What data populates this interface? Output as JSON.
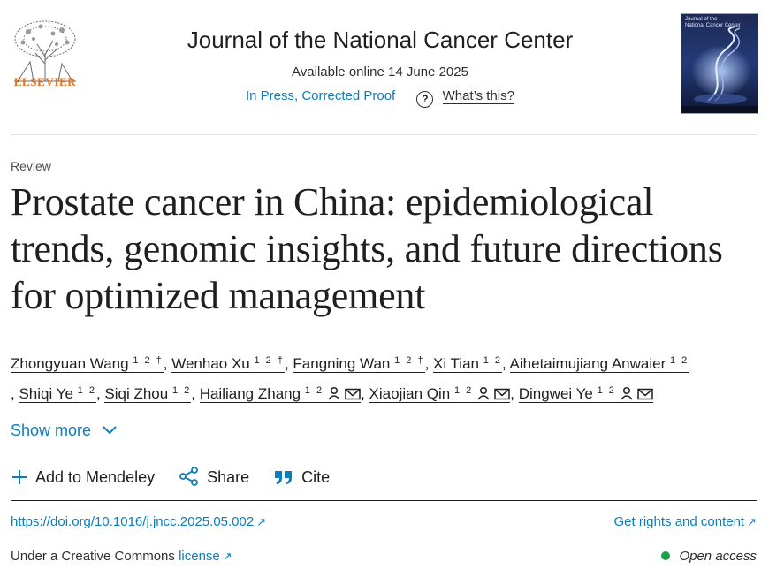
{
  "header": {
    "publisher": "ELSEVIER",
    "journal": "Journal of the National Cancer Center",
    "available": "Available online 14 June 2025",
    "status": "In Press, Corrected Proof",
    "whats_this": "What’s this?",
    "help_icon": "question-circle-icon"
  },
  "cover": {
    "line1": "Journal of the",
    "line2": "National Cancer Center"
  },
  "article": {
    "type": "Review",
    "title": "Prostate cancer in China: epidemiological trends, genomic insights, and future directions for optimized management"
  },
  "authors": [
    {
      "name": "Zhongyuan Wang",
      "sup": "1 2 †"
    },
    {
      "name": "Wenhao Xu",
      "sup": "1 2 †"
    },
    {
      "name": "Fangning Wan",
      "sup": "1 2 †"
    },
    {
      "name": "Xi Tian",
      "sup": "1 2"
    },
    {
      "name": "Aihetaimujiang Anwaier",
      "sup": "1 2"
    },
    {
      "name": "Shiqi Ye",
      "sup": "1 2"
    },
    {
      "name": "Siqi Zhou",
      "sup": "1 2"
    },
    {
      "name": "Hailiang Zhang",
      "sup": "1 2"
    },
    {
      "name": "Xiaojian Qin",
      "sup": "1 2"
    },
    {
      "name": "Dingwei Ye",
      "sup": "1 2"
    }
  ],
  "show_more": "Show more",
  "actions": {
    "mendeley": "Add to Mendeley",
    "share": "Share",
    "cite": "Cite"
  },
  "links": {
    "doi": "https://doi.org/10.1016/j.jncc.2025.05.002",
    "rights": "Get rights and content",
    "license_prefix": "Under a Creative Commons",
    "license_link": "license",
    "open_access": "Open access"
  },
  "colors": {
    "link": "#0c7dbb",
    "publisher_orange": "#e9711c",
    "open_access_dot": "#1ba34a"
  }
}
